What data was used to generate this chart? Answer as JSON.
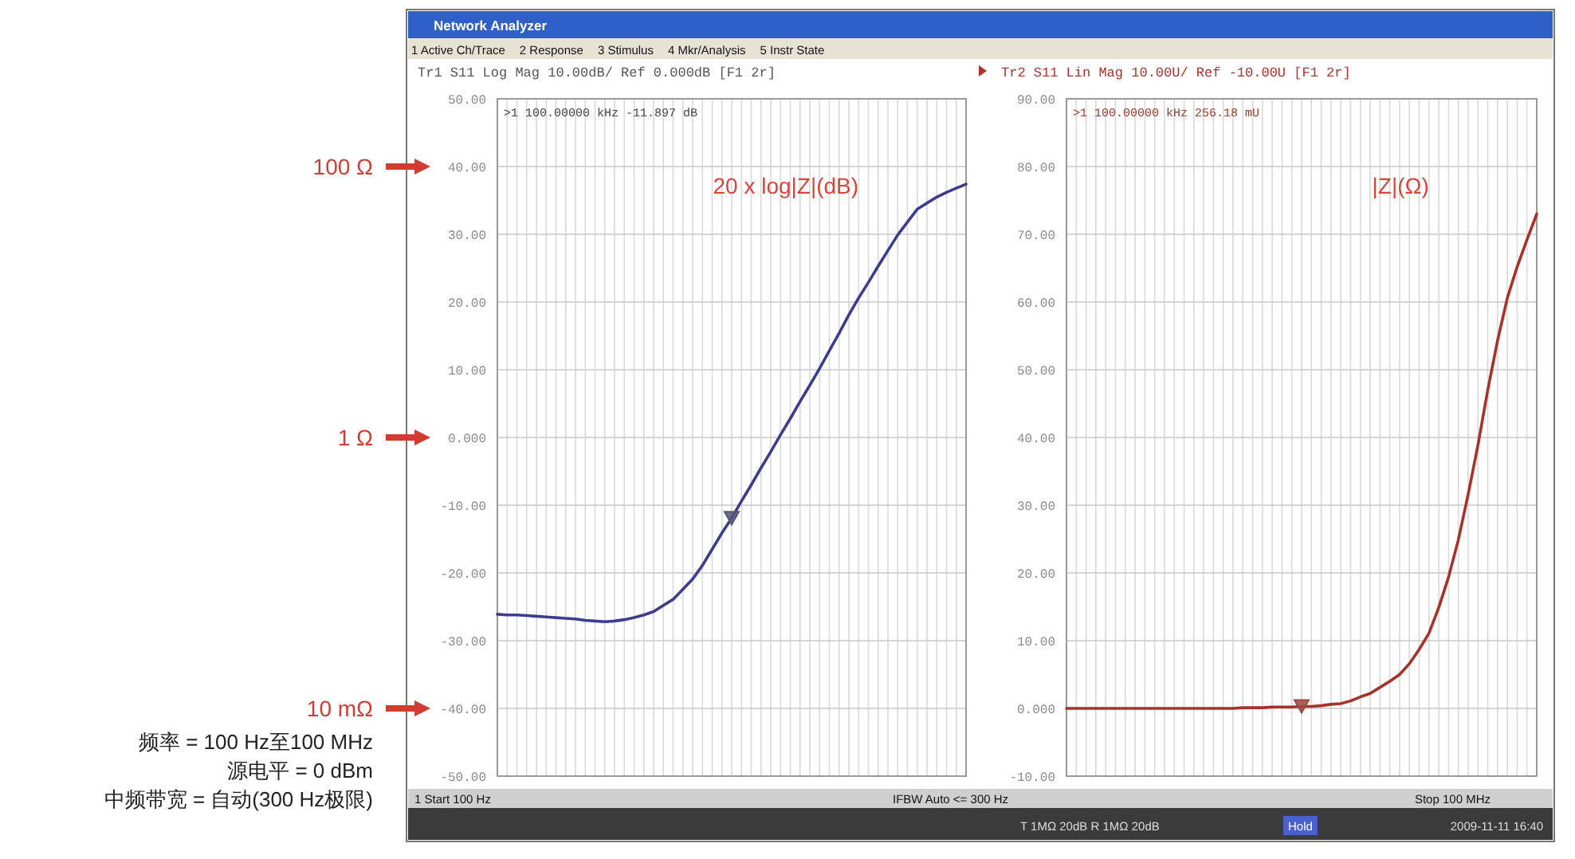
{
  "chart_data": [
    {
      "type": "line",
      "title": "Tr1 S11 Log Mag 10.00dB/ Ref 0.000dB [F1 2r]",
      "categories": [
        null,
        null,
        null,
        null,
        null,
        null,
        null,
        null,
        null,
        null,
        null,
        null,
        null,
        null,
        null,
        null,
        null,
        null,
        null,
        null,
        null,
        null,
        null,
        null,
        null,
        null,
        null,
        null,
        null,
        null,
        null,
        null,
        null,
        null,
        null,
        null,
        null,
        null,
        null,
        null,
        null,
        null,
        null,
        null,
        null,
        null,
        null,
        null,
        null
      ],
      "ylim": [
        -50,
        50
      ],
      "yticks": [
        {
          "value": 50,
          "label": "50.00"
        },
        {
          "value": 40,
          "label": "40.00"
        },
        {
          "value": 30,
          "label": "30.00"
        },
        {
          "value": 20,
          "label": "20.00"
        },
        {
          "value": 10,
          "label": "10.00"
        },
        {
          "value": 0,
          "label": "0.000"
        },
        {
          "value": -10,
          "label": "-10.00"
        },
        {
          "value": -20,
          "label": "-20.00"
        },
        {
          "value": -30,
          "label": "-30.00"
        },
        {
          "value": -40,
          "label": "-40.00"
        },
        {
          "value": -50,
          "label": "-50.00"
        }
      ],
      "grid": true,
      "tick_labels": "y",
      "series": [
        {
          "name": "20 x log|Z|(dB)",
          "color": "#3d3d8f",
          "values": [
            -26.1,
            -26.2,
            -26.2,
            -26.3,
            -26.4,
            -26.5,
            -26.6,
            -26.7,
            -26.8,
            -27.0,
            -27.1,
            -27.2,
            -27.1,
            -26.9,
            -26.6,
            -26.2,
            -25.7,
            -24.8,
            -23.9,
            -22.4,
            -20.9,
            -18.9,
            -16.5,
            -14.1,
            -11.9,
            -9.4,
            -7.0,
            -4.5,
            -2.1,
            0.4,
            2.8,
            5.3,
            7.7,
            10.2,
            12.8,
            15.4,
            18.1,
            20.6,
            22.9,
            25.3,
            27.6,
            29.9,
            31.8,
            33.7,
            34.6,
            35.5,
            36.2,
            36.8,
            37.4
          ]
        },
        {
          "type": "scatter",
          "marker": "triangle",
          "color": "#55557a",
          "values": [
            null,
            null,
            null,
            null,
            null,
            null,
            null,
            null,
            null,
            null,
            null,
            null,
            null,
            null,
            null,
            null,
            null,
            null,
            null,
            null,
            null,
            null,
            null,
            null,
            -11.9,
            null,
            null,
            null,
            null,
            null,
            null,
            null,
            null,
            null,
            null,
            null,
            null,
            null,
            null,
            null,
            null,
            null,
            null,
            null,
            null,
            null,
            null,
            null,
            null
          ]
        }
      ],
      "annotations": [
        "Network Analyzer",
        "1 Active Ch/Trace",
        "2 Response",
        "3 Stimulus",
        "4 Mkr/Analysis",
        "5 Instr State",
        ">1  100.00000 kHz  -11.897 dB",
        "100 Ω",
        "1 Ω",
        "10 mΩ",
        "频率 = 100 Hz至100 MHz",
        "源电平 = 0 dBm",
        "中频带宽 = 自动(300 Hz极限)",
        "1 Start 100 Hz",
        "IFBW Auto <= 300 Hz"
      ]
    },
    {
      "type": "line",
      "title": "Tr2 S11 Lin Mag 10.00U/ Ref -10.00U [F1 2r]",
      "categories": [
        null,
        null,
        null,
        null,
        null,
        null,
        null,
        null,
        null,
        null,
        null,
        null,
        null,
        null,
        null,
        null,
        null,
        null,
        null,
        null,
        null,
        null,
        null,
        null,
        null,
        null,
        null,
        null,
        null,
        null,
        null,
        null,
        null,
        null,
        null,
        null,
        null,
        null,
        null,
        null,
        null,
        null,
        null,
        null,
        null,
        null,
        null,
        null,
        null
      ],
      "ylim": [
        -10,
        90
      ],
      "yticks": [
        {
          "value": 90,
          "label": "90.00"
        },
        {
          "value": 80,
          "label": "80.00"
        },
        {
          "value": 70,
          "label": "70.00"
        },
        {
          "value": 60,
          "label": "60.00"
        },
        {
          "value": 50,
          "label": "50.00"
        },
        {
          "value": 40,
          "label": "40.00"
        },
        {
          "value": 30,
          "label": "30.00"
        },
        {
          "value": 20,
          "label": "20.00"
        },
        {
          "value": 10,
          "label": "10.00"
        },
        {
          "value": 0,
          "label": "0.000"
        },
        {
          "value": -10,
          "label": "-10.00"
        }
      ],
      "grid": true,
      "tick_labels": "y",
      "series": [
        {
          "name": "|Z|(Ω)",
          "color": "#a8322a",
          "values": [
            0,
            0,
            0,
            0,
            0,
            0,
            0,
            0,
            0,
            0,
            0,
            0,
            0,
            0,
            0,
            0,
            0,
            0,
            0.1,
            0.1,
            0.1,
            0.2,
            0.2,
            0.2,
            0.3,
            0.3,
            0.4,
            0.6,
            0.7,
            1.1,
            1.7,
            2.2,
            3.1,
            4.0,
            5.0,
            6.6,
            8.7,
            11.1,
            14.9,
            19.4,
            24.9,
            31.6,
            38.9,
            47.0,
            54.3,
            60.6,
            65.2,
            69.2,
            73.0
          ]
        },
        {
          "type": "scatter",
          "marker": "triangle",
          "color": "#9a4a40",
          "values": [
            null,
            null,
            null,
            null,
            null,
            null,
            null,
            null,
            null,
            null,
            null,
            null,
            null,
            null,
            null,
            null,
            null,
            null,
            null,
            null,
            null,
            null,
            null,
            null,
            0.3,
            null,
            null,
            null,
            null,
            null,
            null,
            null,
            null,
            null,
            null,
            null,
            null,
            null,
            null,
            null,
            null,
            null,
            null,
            null,
            null,
            null,
            null,
            null,
            null
          ]
        }
      ],
      "annotations": [
        ">1  100.00000 kHz  256.18 mU",
        "Stop 100 MHz",
        "T 1MΩ 20dB R 1MΩ 20dB",
        "Hold",
        "2009-11-11 16:40"
      ]
    }
  ]
}
